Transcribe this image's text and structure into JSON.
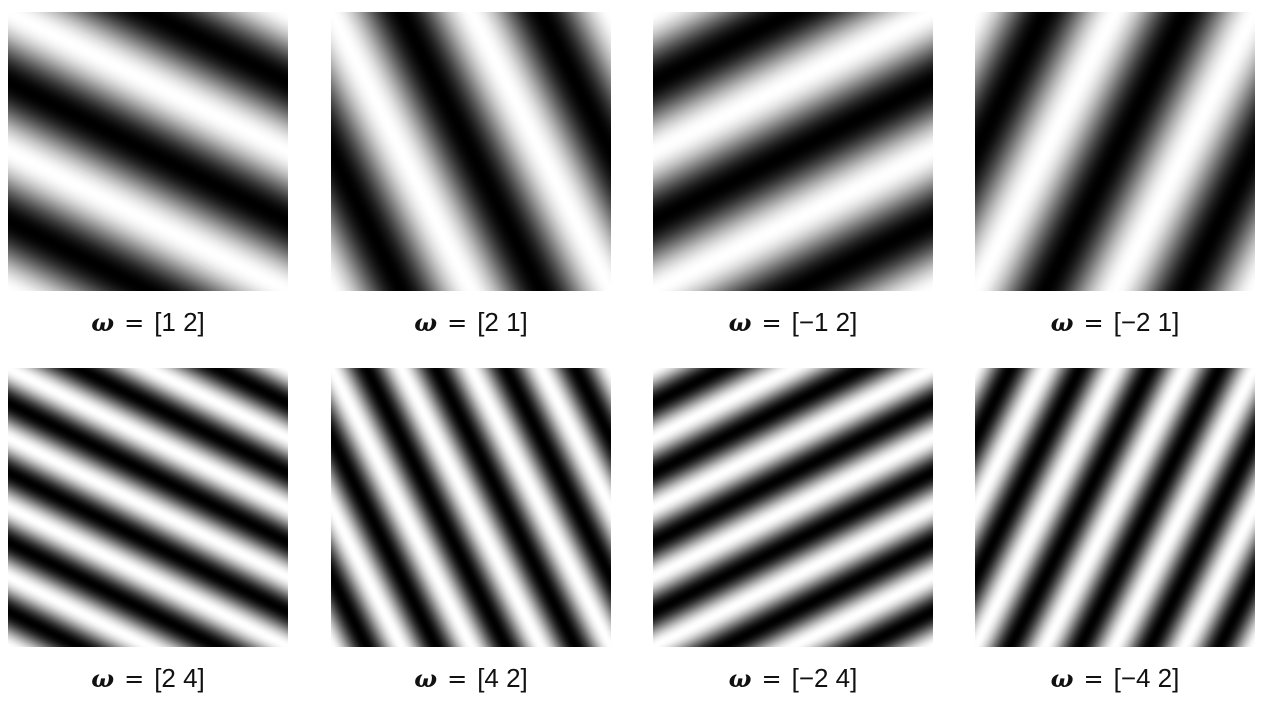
{
  "panels": [
    {
      "symbol": "ω",
      "equals": "=",
      "label": "[1 2]",
      "w": [
        1,
        2
      ]
    },
    {
      "symbol": "ω",
      "equals": "=",
      "label": "[2 1]",
      "w": [
        2,
        1
      ]
    },
    {
      "symbol": "ω",
      "equals": "=",
      "label": "[−1 2]",
      "w": [
        -1,
        2
      ]
    },
    {
      "symbol": "ω",
      "equals": "=",
      "label": "[−2 1]",
      "w": [
        -2,
        1
      ]
    },
    {
      "symbol": "ω",
      "equals": "=",
      "label": "[2 4]",
      "w": [
        2,
        4
      ]
    },
    {
      "symbol": "ω",
      "equals": "=",
      "label": "[4 2]",
      "w": [
        4,
        2
      ]
    },
    {
      "symbol": "ω",
      "equals": "=",
      "label": "[−2 4]",
      "w": [
        -2,
        4
      ]
    },
    {
      "symbol": "ω",
      "equals": "=",
      "label": "[−4 2]",
      "w": [
        -4,
        2
      ]
    }
  ]
}
